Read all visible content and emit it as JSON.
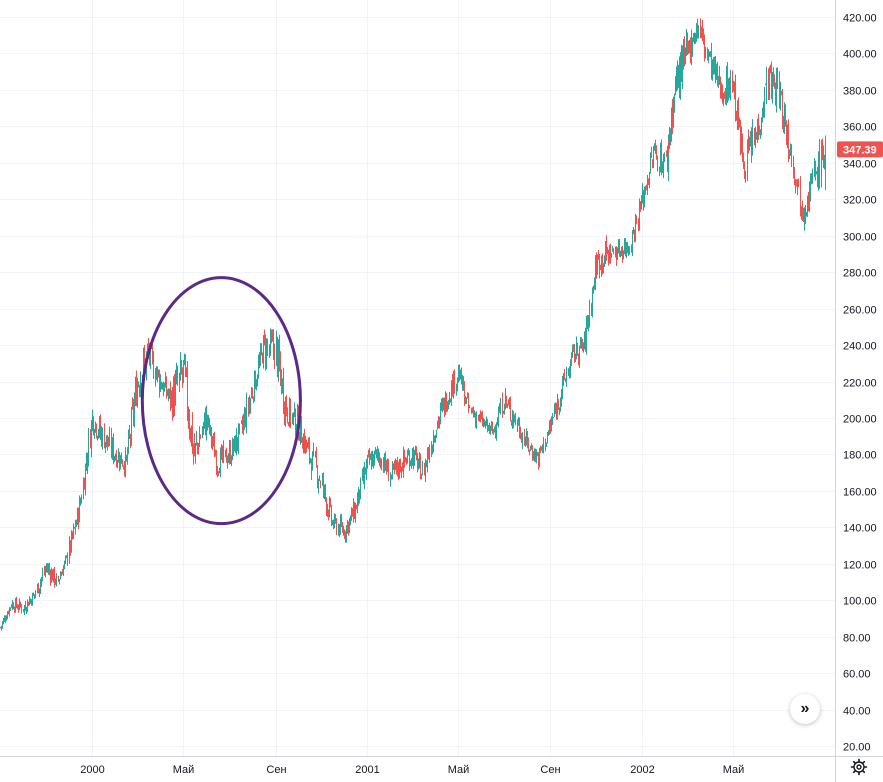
{
  "chart_data": {
    "type": "candlestick",
    "ylim": [
      20,
      430
    ],
    "y_ticks": [
      20,
      40,
      60,
      80,
      100,
      120,
      140,
      160,
      180,
      200,
      220,
      240,
      260,
      280,
      300,
      320,
      340,
      360,
      380,
      400,
      420
    ],
    "y_tick_labels": [
      "20.00",
      "40.00",
      "60.00",
      "80.00",
      "100.00",
      "120.00",
      "140.00",
      "160.00",
      "180.00",
      "200.00",
      "220.00",
      "240.00",
      "260.00",
      "280.00",
      "300.00",
      "320.00",
      "340.00",
      "360.00",
      "380.00",
      "400.00",
      "420.00"
    ],
    "x_tick_labels": [
      "2000",
      "Май",
      "Сен",
      "2001",
      "Май",
      "Сен",
      "2002",
      "Май"
    ],
    "x_tick_dates": [
      "2000-01-01",
      "2000-05-01",
      "2000-09-01",
      "2001-01-01",
      "2001-05-01",
      "2001-09-01",
      "2002-01-01",
      "2002-05-01"
    ],
    "x_range": [
      "1999-09-01",
      "2002-09-14"
    ],
    "grid": true,
    "up_color": "#26a69a",
    "down_color": "#ef5350",
    "last_price": {
      "label": "347.39",
      "value": 347.39,
      "color": "#ef5350"
    },
    "series": [
      {
        "dates": [
          "1999-09-01",
          "1999-09-15",
          "1999-10-01",
          "1999-10-15",
          "1999-11-01",
          "1999-11-15",
          "1999-12-01",
          "1999-12-15",
          "2000-01-01",
          "2000-01-15",
          "2000-02-01",
          "2000-02-15",
          "2000-03-01",
          "2000-03-15",
          "2000-04-01",
          "2000-04-15",
          "2000-05-01",
          "2000-05-15",
          "2000-06-01",
          "2000-06-15",
          "2000-07-01",
          "2000-07-15",
          "2000-08-01",
          "2000-08-15",
          "2000-09-01",
          "2000-09-15",
          "2000-10-01",
          "2000-10-15",
          "2000-11-01",
          "2000-11-15",
          "2000-12-01",
          "2000-12-15",
          "2001-01-01",
          "2001-01-15",
          "2001-02-01",
          "2001-02-15",
          "2001-03-01",
          "2001-03-15",
          "2001-04-01",
          "2001-04-15",
          "2001-05-01",
          "2001-05-15",
          "2001-06-01",
          "2001-06-15",
          "2001-07-01",
          "2001-07-15",
          "2001-08-01",
          "2001-08-15",
          "2001-09-01",
          "2001-09-15",
          "2001-10-01",
          "2001-10-15",
          "2001-11-01",
          "2001-11-15",
          "2001-12-01",
          "2001-12-15",
          "2002-01-01",
          "2002-01-15",
          "2002-02-01",
          "2002-02-15",
          "2002-03-01",
          "2002-03-15",
          "2002-04-01",
          "2002-04-15",
          "2002-05-01",
          "2002-05-15",
          "2002-06-01",
          "2002-06-15",
          "2002-07-01",
          "2002-07-15",
          "2002-08-01",
          "2002-08-15",
          "2002-09-01"
        ],
        "close": [
          85,
          98,
          96,
          102,
          118,
          110,
          125,
          150,
          200,
          190,
          180,
          175,
          220,
          235,
          220,
          210,
          225,
          180,
          200,
          175,
          180,
          190,
          215,
          238,
          238,
          205,
          195,
          180,
          165,
          142,
          138,
          150,
          175,
          180,
          168,
          175,
          180,
          170,
          195,
          210,
          225,
          205,
          198,
          192,
          210,
          200,
          185,
          178,
          195,
          215,
          235,
          240,
          285,
          290,
          292,
          295,
          320,
          345,
          340,
          385,
          400,
          415,
          395,
          380,
          385,
          340,
          355,
          385,
          380,
          350,
          315,
          330,
          347.39
        ],
        "high": [
          92,
          102,
          104,
          108,
          125,
          120,
          130,
          165,
          205,
          200,
          190,
          182,
          255,
          245,
          230,
          218,
          232,
          200,
          210,
          185,
          195,
          202,
          230,
          245,
          245,
          215,
          205,
          190,
          175,
          150,
          145,
          160,
          182,
          190,
          180,
          182,
          188,
          178,
          205,
          218,
          230,
          212,
          206,
          200,
          218,
          210,
          192,
          188,
          205,
          222,
          245,
          248,
          300,
          300,
          305,
          305,
          325,
          360,
          350,
          400,
          410,
          428,
          408,
          392,
          396,
          355,
          365,
          395,
          390,
          360,
          330,
          345,
          355
        ],
        "low": [
          82,
          92,
          90,
          95,
          105,
          106,
          118,
          135,
          180,
          172,
          168,
          162,
          205,
          215,
          205,
          195,
          175,
          155,
          185,
          165,
          170,
          180,
          200,
          225,
          200,
          185,
          180,
          165,
          145,
          132,
          128,
          138,
          160,
          170,
          158,
          160,
          165,
          158,
          180,
          195,
          210,
          195,
          190,
          185,
          195,
          188,
          175,
          172,
          185,
          198,
          225,
          228,
          270,
          280,
          285,
          285,
          305,
          330,
          325,
          355,
          385,
          400,
          375,
          370,
          360,
          330,
          330,
          365,
          355,
          330,
          305,
          310,
          325
        ]
      }
    ]
  },
  "highlight": {
    "shape": "ellipse",
    "color": "#5b2a86",
    "from_date": "2000-03-08",
    "to_date": "2000-10-04",
    "from_value": 142,
    "to_value": 277
  },
  "icons": {
    "scroll": "double-chevron-right-icon",
    "settings": "gear-icon"
  },
  "scroll_label": "»"
}
